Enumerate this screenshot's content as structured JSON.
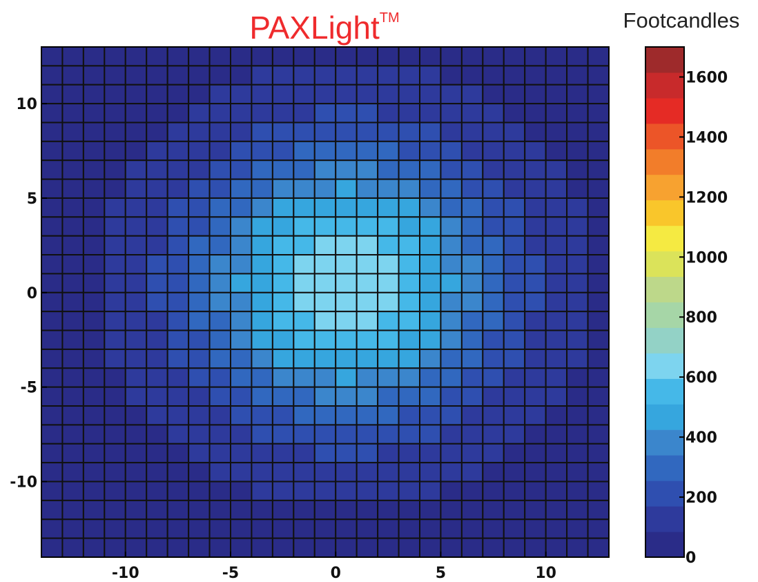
{
  "chart_data": {
    "type": "heatmap",
    "title": "PAXLight",
    "title_mark": "TM",
    "colorbar_label": "Footcandles",
    "x_ticks": [
      -10,
      -5,
      0,
      5,
      10
    ],
    "y_ticks": [
      10,
      5,
      0,
      -5,
      -10
    ],
    "colorbar_ticks": [
      1600,
      1400,
      1200,
      1000,
      800,
      600,
      400,
      200,
      0
    ],
    "xlim": [
      -14,
      13
    ],
    "ylim": [
      -14,
      13
    ],
    "clim": [
      0,
      1700
    ],
    "grid": true,
    "x": [
      -13.5,
      -12.5,
      -11.5,
      -10.5,
      -9.5,
      -8.5,
      -7.5,
      -6.5,
      -5.5,
      -4.5,
      -3.5,
      -2.5,
      -1.5,
      -0.5,
      0.5,
      1.5,
      2.5,
      3.5,
      4.5,
      5.5,
      6.5,
      7.5,
      8.5,
      9.5,
      10.5,
      11.5,
      12.5
    ],
    "y": [
      12.5,
      11.5,
      10.5,
      9.5,
      8.5,
      7.5,
      6.5,
      5.5,
      4.5,
      3.5,
      2.5,
      1.5,
      0.5,
      -0.5,
      -1.5,
      -2.5,
      -3.5,
      -4.5,
      -5.5,
      -6.5,
      -7.5,
      -8.5,
      -9.5,
      -10.5,
      -11.5,
      -12.5,
      -13.5
    ],
    "peak_value": 660,
    "peak_center": [
      0.5,
      0.5
    ],
    "spread": 5.2,
    "base_value": 40,
    "colormap": [
      "#2a2c88",
      "#2e3a9c",
      "#2f4fb0",
      "#3168bf",
      "#3b86cc",
      "#36a6de",
      "#45b8e8",
      "#7dd4ef",
      "#93d2c6",
      "#a6d6a7",
      "#bdd88a",
      "#dbe35a",
      "#f5ea42",
      "#f9c62b",
      "#f7a230",
      "#f27d2a",
      "#ec5528",
      "#e52b25",
      "#c82a2b",
      "#9e2a2b"
    ]
  }
}
